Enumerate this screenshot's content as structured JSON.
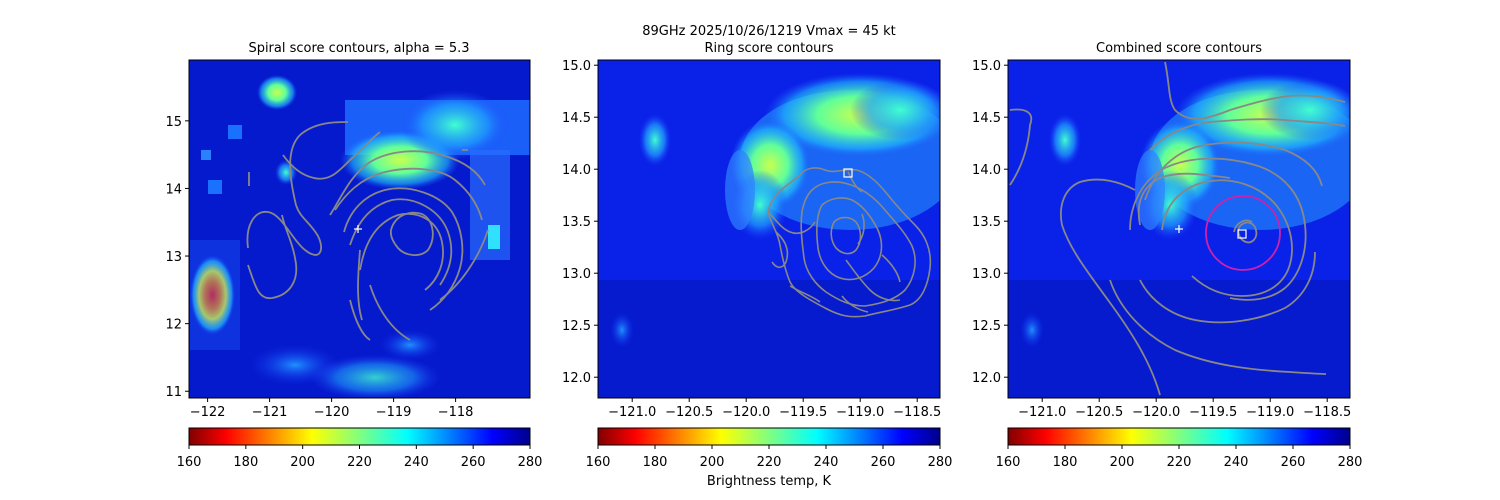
{
  "figure": {
    "suptitle_line1": "89GHz  2025/10/26/1219    Vmax = 45 kt",
    "colorbar_label": "Brightness temp, K"
  },
  "colormap": {
    "name": "jet_r",
    "range": [
      160,
      280
    ],
    "ticks": [
      "160",
      "180",
      "200",
      "220",
      "240",
      "260",
      "280"
    ]
  },
  "chart_data": [
    {
      "type": "heatmap",
      "title": "Spiral score contours, alpha =  5.3",
      "xlim": [
        -122.3,
        -116.8
      ],
      "ylim": [
        10.9,
        15.9
      ],
      "xticks": [
        "-122",
        "-121",
        "-120",
        "-119",
        "-118"
      ],
      "yticks": [
        "11",
        "12",
        "13",
        "14",
        "15"
      ],
      "first_guess": {
        "lon": -119.65,
        "lat": 13.42
      },
      "contour_color": "#888888"
    },
    {
      "type": "heatmap",
      "title": "Ring score contours",
      "xlim": [
        -121.3,
        -118.3
      ],
      "ylim": [
        11.8,
        15.05
      ],
      "xticks": [
        "-121.0",
        "-120.5",
        "-120.0",
        "-119.5",
        "-119.0",
        "-118.5"
      ],
      "yticks": [
        "12.0",
        "12.5",
        "13.0",
        "13.5",
        "14.0",
        "14.5",
        "15.0"
      ],
      "center_estimate": {
        "lon": -119.0,
        "lat": 13.97
      },
      "contour_color": "#888888"
    },
    {
      "type": "heatmap",
      "title": "Combined score contours",
      "xlim": [
        -121.3,
        -118.3
      ],
      "ylim": [
        11.8,
        15.05
      ],
      "xticks": [
        "-121.0",
        "-120.5",
        "-120.0",
        "-119.5",
        "-119.0",
        "-118.5"
      ],
      "yticks": [
        "12.0",
        "12.5",
        "13.0",
        "13.5",
        "14.0",
        "14.5",
        "15.0"
      ],
      "first_guess": {
        "lon": -119.65,
        "lat": 13.42
      },
      "center_estimate": {
        "lon": -119.07,
        "lat": 13.37
      },
      "circle_center": {
        "lon": -119.07,
        "lat": 13.39
      },
      "circle_color": "#cc22aa",
      "contour_color": "#888888"
    }
  ]
}
